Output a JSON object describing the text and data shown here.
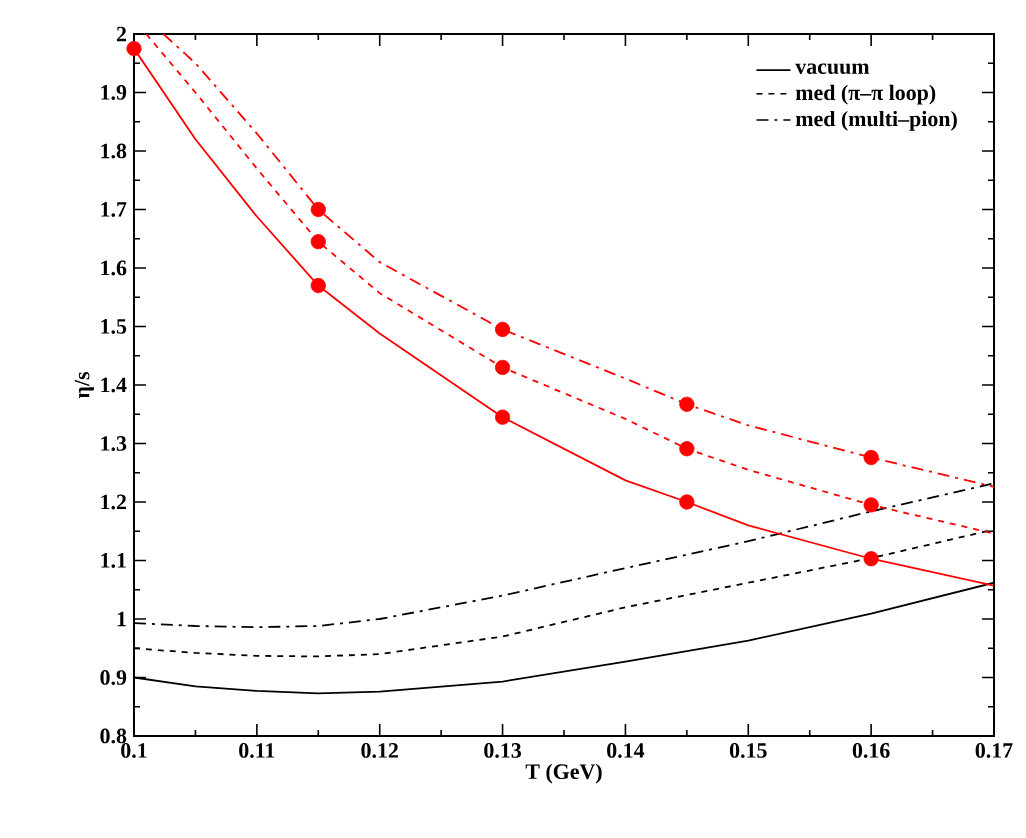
{
  "chart_data": {
    "type": "line",
    "xlabel": "T (GeV)",
    "ylabel": "η/s",
    "xlim": [
      0.1,
      0.17
    ],
    "ylim": [
      0.8,
      2
    ],
    "xticks": [
      0.1,
      0.11,
      0.12,
      0.13,
      0.14,
      0.15,
      0.16,
      0.17
    ],
    "yticks": [
      0.8,
      0.9,
      1,
      1.1,
      1.2,
      1.3,
      1.4,
      1.5,
      1.6,
      1.7,
      1.8,
      1.9,
      2
    ],
    "legend": "top right",
    "grid": false,
    "marker": "none",
    "series": [
      {
        "name": "vacuum",
        "color": "#000000",
        "line_style": "solid",
        "x": [
          0.1,
          0.105,
          0.11,
          0.115,
          0.12,
          0.13,
          0.14,
          0.15,
          0.16,
          0.17
        ],
        "values": [
          0.9,
          0.885,
          0.877,
          0.873,
          0.876,
          0.893,
          0.927,
          0.963,
          1.009,
          1.062
        ]
      },
      {
        "name": "med (π–π loop)",
        "color": "#000000",
        "line_style": "dashed",
        "x": [
          0.1,
          0.105,
          0.11,
          0.115,
          0.12,
          0.13,
          0.14,
          0.15,
          0.16,
          0.17
        ],
        "values": [
          0.95,
          0.942,
          0.937,
          0.936,
          0.94,
          0.97,
          1.02,
          1.062,
          1.104,
          1.153
        ]
      },
      {
        "name": "med (multi–pion)",
        "color": "#000000",
        "line_style": "dashdot",
        "x": [
          0.1,
          0.105,
          0.11,
          0.115,
          0.12,
          0.13,
          0.14,
          0.15,
          0.16,
          0.17
        ],
        "values": [
          0.993,
          0.988,
          0.986,
          0.988,
          1.0,
          1.04,
          1.087,
          1.133,
          1.184,
          1.232
        ]
      },
      {
        "color": "#ff0000",
        "line_style": "solid",
        "x": [
          0.1,
          0.105,
          0.11,
          0.115,
          0.12,
          0.13,
          0.14,
          0.145,
          0.15,
          0.16,
          0.17
        ],
        "values": [
          1.975,
          1.82,
          1.688,
          1.57,
          1.488,
          1.345,
          1.237,
          1.2,
          1.16,
          1.103,
          1.057
        ]
      },
      {
        "color": "#ff0000",
        "line_style": "dashed",
        "x": [
          0.101,
          0.105,
          0.11,
          0.115,
          0.12,
          0.13,
          0.14,
          0.145,
          0.15,
          0.16,
          0.17
        ],
        "values": [
          2.0,
          1.9,
          1.77,
          1.645,
          1.557,
          1.43,
          1.342,
          1.291,
          1.255,
          1.195,
          1.146
        ]
      },
      {
        "color": "#ff0000",
        "line_style": "dashdot",
        "x": [
          0.1024,
          0.105,
          0.11,
          0.115,
          0.12,
          0.13,
          0.14,
          0.145,
          0.15,
          0.16,
          0.17
        ],
        "values": [
          2.0,
          1.95,
          1.83,
          1.7,
          1.61,
          1.495,
          1.411,
          1.367,
          1.331,
          1.276,
          1.226
        ]
      },
      {
        "type": "scatter",
        "marker": "circle",
        "color": "#ff0000",
        "x": [
          0.1,
          0.115,
          0.13,
          0.145,
          0.16
        ],
        "values": [
          1.975,
          1.57,
          1.345,
          1.2,
          1.103
        ]
      },
      {
        "type": "scatter",
        "marker": "circle",
        "color": "#ff0000",
        "x": [
          0.115,
          0.13,
          0.145,
          0.16
        ],
        "values": [
          1.645,
          1.43,
          1.291,
          1.195
        ]
      },
      {
        "type": "scatter",
        "marker": "circle",
        "color": "#ff0000",
        "x": [
          0.115,
          0.13,
          0.145,
          0.16
        ],
        "values": [
          1.7,
          1.495,
          1.367,
          1.276
        ]
      }
    ]
  }
}
